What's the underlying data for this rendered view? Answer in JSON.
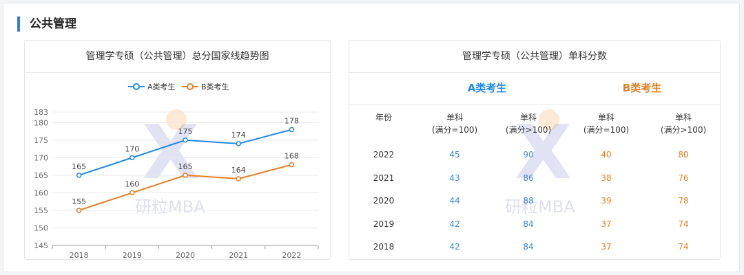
{
  "section": {
    "title": "公共管理"
  },
  "left_card": {
    "title": "管理学专硕（公共管理）总分国家线趋势图"
  },
  "right_card": {
    "title": "管理学专硕（公共管理）单科分数"
  },
  "watermark": {
    "text": "研粒MBA"
  },
  "chart_data": {
    "type": "line",
    "x": [
      "2018",
      "2019",
      "2020",
      "2021",
      "2022"
    ],
    "series": [
      {
        "name": "A类考生",
        "values": [
          165,
          170,
          175,
          174,
          178
        ],
        "color": "#1e88e5"
      },
      {
        "name": "B类考生",
        "values": [
          155,
          160,
          165,
          164,
          168
        ],
        "color": "#e67e22"
      }
    ],
    "ylim": [
      145,
      183
    ],
    "yticks": [
      "145",
      "150",
      "155",
      "160",
      "165",
      "170",
      "175",
      "180",
      "183"
    ],
    "grid": true,
    "legend": "top-center"
  },
  "table": {
    "group_a": "A类考生",
    "group_b": "B类考生",
    "headers": [
      {
        "line1": "年份",
        "line2": ""
      },
      {
        "line1": "单科",
        "line2": "(满分=100)"
      },
      {
        "line1": "单科",
        "line2": "(满分>100)"
      },
      {
        "line1": "单科",
        "line2": "(满分=100)"
      },
      {
        "line1": "单科",
        "line2": "(满分>100)"
      }
    ],
    "rows": [
      [
        "2022",
        "45",
        "90",
        "40",
        "80"
      ],
      [
        "2021",
        "43",
        "86",
        "38",
        "76"
      ],
      [
        "2020",
        "44",
        "88",
        "39",
        "78"
      ],
      [
        "2019",
        "42",
        "84",
        "37",
        "74"
      ],
      [
        "2018",
        "42",
        "84",
        "37",
        "74"
      ]
    ],
    "colors": {
      "a": "#3a86d4",
      "b": "#e67e22",
      "year": "#333333"
    }
  }
}
